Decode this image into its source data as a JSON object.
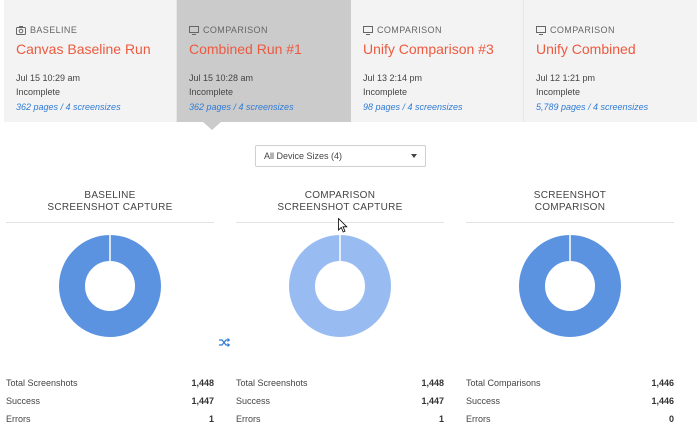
{
  "runs": [
    {
      "kind": "BASELINE",
      "icon": "camera-icon",
      "name": "Canvas Baseline Run",
      "date": "Jul 15 10:29 am",
      "status": "Incomplete",
      "pages": "362 pages / 4 screensizes"
    },
    {
      "kind": "COMPARISON",
      "icon": "monitor-icon",
      "name": "Combined Run #1",
      "date": "Jul 15 10:28 am",
      "status": "Incomplete",
      "pages": "362 pages / 4 screensizes"
    },
    {
      "kind": "COMPARISON",
      "icon": "monitor-icon",
      "name": "Unify Comparison #3",
      "date": "Jul 13 2:14 pm",
      "status": "Incomplete",
      "pages": "98 pages / 4 screensizes"
    },
    {
      "kind": "COMPARISON",
      "icon": "monitor-icon",
      "name": "Unify Combined",
      "date": "Jul 12 1:21 pm",
      "status": "Incomplete",
      "pages": "5,789 pages / 4 screensizes"
    }
  ],
  "device_select": {
    "value": "All Device Sizes (4)"
  },
  "panels": [
    {
      "title_line1": "BASELINE",
      "title_line2": "SCREENSHOT CAPTURE",
      "color": "#5b93e0",
      "fraction": 1.0,
      "stats": [
        {
          "label": "Total Screenshots",
          "value": "1,448"
        },
        {
          "label": "Success",
          "value": "1,447"
        },
        {
          "label": "Errors",
          "value": "1"
        }
      ]
    },
    {
      "title_line1": "COMPARISON",
      "title_line2": "SCREENSHOT CAPTURE",
      "color": "#98bcf2",
      "fraction": 1.0,
      "stats": [
        {
          "label": "Total Screenshots",
          "value": "1,448"
        },
        {
          "label": "Success",
          "value": "1,447"
        },
        {
          "label": "Errors",
          "value": "1"
        }
      ]
    },
    {
      "title_line1": "SCREENSHOT",
      "title_line2": "COMPARISON",
      "color": "#5b93e0",
      "fraction": 1.0,
      "stats": [
        {
          "label": "Total Comparisons",
          "value": "1,446"
        },
        {
          "label": "Success",
          "value": "1,446"
        },
        {
          "label": "Errors",
          "value": "0"
        }
      ]
    }
  ],
  "accent_color": "#ec5a3f",
  "link_color": "#2f7bd6"
}
